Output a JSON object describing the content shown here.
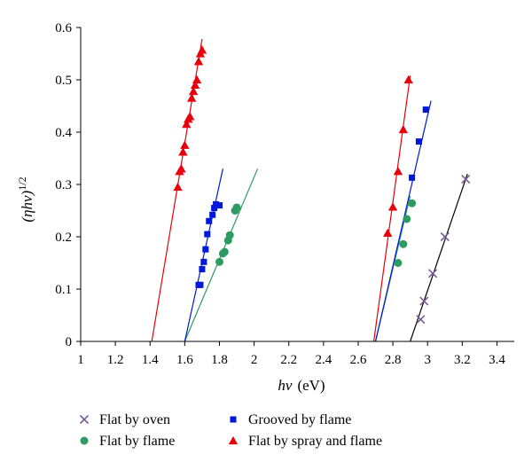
{
  "chart_data": {
    "type": "scatter",
    "title": "",
    "xlabel_var": "hν",
    "xlabel_unit": "(eV)",
    "ylabel_var": "(ηhν)",
    "ylabel_exp": "1/2",
    "xlim": [
      1,
      3.5
    ],
    "ylim": [
      0,
      0.6
    ],
    "xticks": [
      "1",
      "1.2",
      "1.4",
      "1.6",
      "1.8",
      "2",
      "2.2",
      "2.4",
      "2.6",
      "2.8",
      "3",
      "3.2",
      "3.4"
    ],
    "yticks": [
      "0",
      "0.1",
      "0.2",
      "0.3",
      "0.4",
      "0.5",
      "0.6"
    ],
    "grid": false,
    "legend_position": "bottom",
    "series": [
      {
        "name": "Flat by oven",
        "marker": "x",
        "color": "#7a5c96",
        "line_color": "#000000",
        "points": [
          [
            2.96,
            0.042
          ],
          [
            2.98,
            0.077
          ],
          [
            3.03,
            0.13
          ],
          [
            3.1,
            0.2
          ],
          [
            3.22,
            0.31
          ]
        ],
        "fit": [
          [
            2.9,
            0.0
          ],
          [
            3.23,
            0.32
          ]
        ]
      },
      {
        "name": "Flat by flame",
        "marker": "circle",
        "color": "#2e9b60",
        "line_color": "#2e9b60",
        "points": [
          [
            1.8,
            0.152
          ],
          [
            1.82,
            0.168
          ],
          [
            1.83,
            0.171
          ],
          [
            1.85,
            0.193
          ],
          [
            1.86,
            0.203
          ],
          [
            1.89,
            0.25
          ],
          [
            1.9,
            0.256
          ],
          [
            2.83,
            0.15
          ],
          [
            2.86,
            0.186
          ],
          [
            2.88,
            0.234
          ],
          [
            2.91,
            0.264
          ]
        ],
        "fits": [
          [
            [
              1.6,
              0.0
            ],
            [
              2.02,
              0.33
            ]
          ],
          [
            [
              2.7,
              0.0
            ],
            [
              2.9,
              0.278
            ]
          ]
        ]
      },
      {
        "name": "Grooved by flame",
        "marker": "square",
        "color": "#0018d8",
        "line_color": "#0018d8",
        "points": [
          [
            1.68,
            0.108
          ],
          [
            1.69,
            0.108
          ],
          [
            1.7,
            0.138
          ],
          [
            1.71,
            0.152
          ],
          [
            1.72,
            0.176
          ],
          [
            1.73,
            0.205
          ],
          [
            1.74,
            0.23
          ],
          [
            1.76,
            0.242
          ],
          [
            1.77,
            0.255
          ],
          [
            1.78,
            0.262
          ],
          [
            1.8,
            0.26
          ],
          [
            2.91,
            0.313
          ],
          [
            2.95,
            0.382
          ],
          [
            2.99,
            0.443
          ]
        ],
        "fits": [
          [
            [
              1.6,
              0.0
            ],
            [
              1.82,
              0.33
            ]
          ],
          [
            [
              2.7,
              0.0
            ],
            [
              3.02,
              0.46
            ]
          ]
        ]
      },
      {
        "name": "Flat by spray and flame",
        "marker": "triangle",
        "color": "#e8000b",
        "line_color": "#e8000b",
        "points": [
          [
            1.56,
            0.295
          ],
          [
            1.57,
            0.325
          ],
          [
            1.58,
            0.33
          ],
          [
            1.59,
            0.362
          ],
          [
            1.6,
            0.375
          ],
          [
            1.61,
            0.415
          ],
          [
            1.62,
            0.425
          ],
          [
            1.63,
            0.43
          ],
          [
            1.64,
            0.465
          ],
          [
            1.65,
            0.478
          ],
          [
            1.66,
            0.49
          ],
          [
            1.67,
            0.5
          ],
          [
            1.68,
            0.535
          ],
          [
            1.69,
            0.55
          ],
          [
            1.7,
            0.557
          ],
          [
            2.77,
            0.207
          ],
          [
            2.8,
            0.257
          ],
          [
            2.83,
            0.325
          ],
          [
            2.86,
            0.405
          ],
          [
            2.89,
            0.5
          ]
        ],
        "fits": [
          [
            [
              1.41,
              0.0
            ],
            [
              1.7,
              0.578
            ]
          ],
          [
            [
              2.69,
              0.0
            ],
            [
              2.9,
              0.508
            ]
          ]
        ]
      }
    ]
  },
  "legend": [
    {
      "label": "Flat by oven",
      "marker": "x",
      "color": "#7a5c96"
    },
    {
      "label": "Grooved by flame",
      "marker": "square",
      "color": "#0018d8"
    },
    {
      "label": "Flat by flame",
      "marker": "circle",
      "color": "#2e9b60"
    },
    {
      "label": "Flat by spray and flame",
      "marker": "triangle",
      "color": "#e8000b"
    }
  ]
}
